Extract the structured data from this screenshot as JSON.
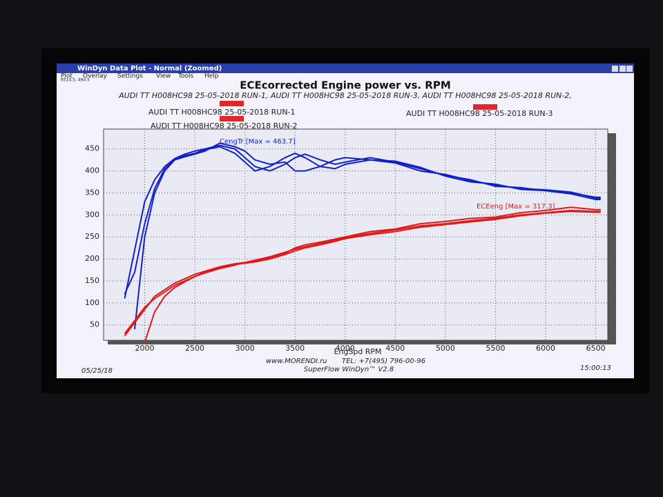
{
  "window": {
    "title": "WinDyn Data Plot - Normal   (Zoomed)",
    "menu": [
      "Plot",
      "Overlay",
      "Settings",
      "View",
      "Tools",
      "Help"
    ],
    "status": "6514.5, 494.5"
  },
  "chart_data": {
    "type": "line",
    "title": "ECEcorrected Engine power vs. RPM",
    "subtitle": "AUDI TT H008HC98 25-05-2018 RUN-1, AUDI TT H008HC98 25-05-2018 RUN-3, AUDI TT H008HC98 25-05-2018 RUN-2,",
    "x_label": "EngSpd RPM",
    "legend_color": "#e02828",
    "grid": true,
    "xlim": [
      1590,
      6620
    ],
    "xticks": [
      2000,
      2500,
      3000,
      3500,
      4000,
      4500,
      5000,
      5500,
      6000,
      6500
    ],
    "ylim": [
      15,
      495
    ],
    "yticks": [
      50,
      100,
      150,
      200,
      250,
      300,
      350,
      400,
      450
    ],
    "x": [
      1800,
      1900,
      2000,
      2100,
      2200,
      2300,
      2400,
      2500,
      2600,
      2750,
      2900,
      3000,
      3100,
      3250,
      3400,
      3500,
      3600,
      3750,
      3900,
      4000,
      4250,
      4500,
      4750,
      5000,
      5250,
      5500,
      5750,
      6000,
      6250,
      6500,
      6550
    ],
    "series": [
      {
        "name": "AUDI TT H008HC98 25-05-2018 RUN-1",
        "color": "#1020c8",
        "values": [
          110,
          220,
          330,
          380,
          410,
          428,
          438,
          445,
          450,
          458,
          450,
          430,
          410,
          400,
          415,
          430,
          438,
          425,
          415,
          420,
          430,
          420,
          405,
          390,
          380,
          365,
          362,
          355,
          350,
          340,
          340
        ]
      },
      {
        "name": "AUDI TT H008HC98 25-05-2018 RUN-3",
        "color": "#1020c8",
        "values": [
          120,
          170,
          280,
          360,
          405,
          425,
          432,
          438,
          445,
          463,
          455,
          445,
          425,
          415,
          420,
          400,
          400,
          410,
          425,
          430,
          425,
          418,
          400,
          392,
          378,
          368,
          360,
          357,
          352,
          338,
          338
        ]
      },
      {
        "name": "AUDI TT H008HC98 25-05-2018 RUN-2",
        "color": "#1020c8",
        "values": [
          null,
          40,
          250,
          350,
          400,
          425,
          435,
          440,
          448,
          455,
          440,
          420,
          400,
          410,
          430,
          440,
          430,
          410,
          405,
          415,
          425,
          422,
          408,
          388,
          375,
          370,
          358,
          355,
          348,
          335,
          335
        ]
      }
    ],
    "power_series": [
      {
        "color": "#e01818",
        "values": [
          30,
          60,
          90,
          110,
          125,
          140,
          150,
          160,
          168,
          178,
          186,
          192,
          197,
          205,
          215,
          222,
          228,
          235,
          242,
          248,
          258,
          266,
          275,
          280,
          287,
          292,
          300,
          305,
          310,
          308,
          308
        ]
      },
      {
        "color": "#e01818",
        "values": [
          25,
          55,
          85,
          115,
          130,
          145,
          155,
          165,
          172,
          182,
          189,
          192,
          195,
          202,
          212,
          225,
          232,
          238,
          245,
          250,
          262,
          268,
          280,
          285,
          292,
          295,
          305,
          310,
          317.3,
          312,
          312
        ]
      },
      {
        "color": "#e01818",
        "values": [
          null,
          null,
          10,
          80,
          115,
          135,
          148,
          160,
          170,
          180,
          188,
          190,
          193,
          200,
          210,
          218,
          225,
          232,
          240,
          246,
          255,
          262,
          272,
          278,
          284,
          290,
          298,
          304,
          308,
          306,
          306
        ]
      }
    ],
    "annotations": [
      {
        "text": "CengTr [Max = 463.7]",
        "color": "#1020c8"
      },
      {
        "text": "ECEeng [Max = 317.3]",
        "color": "#e01818"
      }
    ]
  },
  "footer": {
    "website": "www.MORENDI.ru",
    "phone": "TEL: +7(495) 796-00-96",
    "software": "SuperFlow WinDyn™ V2.8",
    "date": "05/25/18",
    "time": "15:00:13"
  }
}
